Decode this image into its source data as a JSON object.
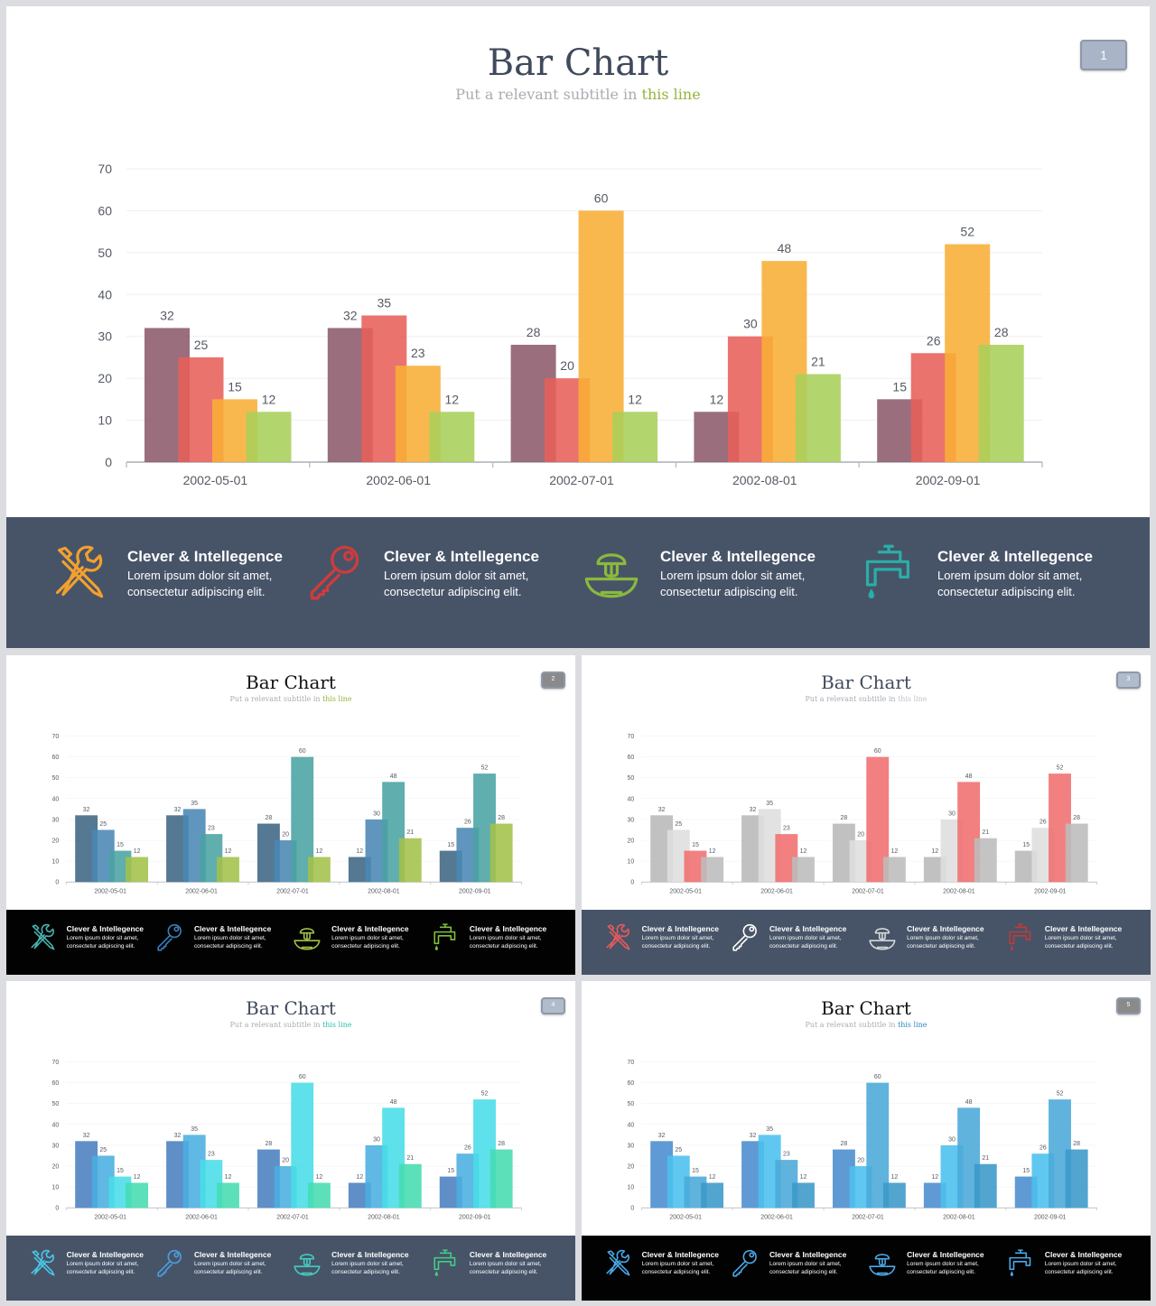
{
  "chart_data": {
    "type": "bar",
    "categories": [
      "2002-05-01",
      "2002-06-01",
      "2002-07-01",
      "2002-08-01",
      "2002-09-01"
    ],
    "series": [
      {
        "values": [
          32,
          32,
          28,
          12,
          15
        ]
      },
      {
        "values": [
          25,
          35,
          20,
          30,
          26
        ]
      },
      {
        "values": [
          15,
          23,
          60,
          48,
          52
        ]
      },
      {
        "values": [
          12,
          12,
          12,
          21,
          28
        ]
      }
    ],
    "title": "Bar Chart",
    "ylim": [
      0,
      70
    ],
    "yticks": [
      0,
      10,
      20,
      30,
      40,
      50,
      60,
      70
    ],
    "grid": true,
    "data_labels": true
  },
  "slide": {
    "title": "Bar Chart",
    "subtitle_text": "Put a relevant subtitle in ",
    "subtitle_highlight": "this line"
  },
  "features": [
    {
      "icon": "tools-icon",
      "title": "Clever & Intellegence",
      "line1": "Lorem ipsum dolor sit amet,",
      "line2": "consectetur adipiscing elit."
    },
    {
      "icon": "key-icon",
      "title": "Clever & Intellegence",
      "line1": "Lorem ipsum dolor sit amet,",
      "line2": "consectetur adipiscing elit."
    },
    {
      "icon": "juicer-icon",
      "title": "Clever & Intellegence",
      "line1": "Lorem ipsum dolor sit amet,",
      "line2": "consectetur adipiscing elit."
    },
    {
      "icon": "faucet-icon",
      "title": "Clever & Intellegence",
      "line1": "Lorem ipsum dolor sit amet,",
      "line2": "consectetur adipiscing elit."
    }
  ],
  "variants": [
    {
      "number": "1",
      "badge_color": "#a9b4c6",
      "footer_color": "#475468",
      "highlight_color": "#95b43c",
      "title_color": "#404a5c",
      "bar_colors": [
        "#8c5a6b",
        "#e8605a",
        "#f8ae36",
        "#a8cf5a"
      ],
      "icon_colors": [
        "#f2a02e",
        "#d43a3a",
        "#8ab93c",
        "#2aaea8"
      ]
    },
    {
      "number": "2",
      "badge_color": "#8a8a8a",
      "footer_color": "#020202",
      "highlight_color": "#95b43c",
      "title_color": "#111111",
      "bar_colors": [
        "#3e6584",
        "#4a87b4",
        "#4aa3a3",
        "#a3c24a"
      ],
      "icon_colors": [
        "#4ab0b0",
        "#3a7fbf",
        "#a3c24a",
        "#7fbf3a"
      ]
    },
    {
      "number": "3",
      "badge_color": "#b0bccb",
      "footer_color": "#475468",
      "highlight_color": "#c0c4c8",
      "title_color": "#404a5c",
      "bar_colors": [
        "#b8b8b8",
        "#dedede",
        "#f06e6e",
        "#bcbcbc"
      ],
      "icon_colors": [
        "#e85a5a",
        "#ffffff",
        "#d8d8d8",
        "#c03a3a"
      ]
    },
    {
      "number": "4",
      "badge_color": "#b0bccb",
      "footer_color": "#475468",
      "highlight_color": "#2bc0b0",
      "title_color": "#404a5c",
      "bar_colors": [
        "#4a7fc0",
        "#4aaee0",
        "#48dde8",
        "#44dcb0"
      ],
      "icon_colors": [
        "#48c8e8",
        "#4aa0e0",
        "#44ccc0",
        "#44cc88"
      ]
    },
    {
      "number": "5",
      "badge_color": "#8a8a8a",
      "footer_color": "#020202",
      "highlight_color": "#2a8ac0",
      "title_color": "#111111",
      "bar_colors": [
        "#4a8cce",
        "#4ac0ee",
        "#4aa8d8",
        "#3a98c8"
      ],
      "icon_colors": [
        "#4aa8e8",
        "#4aa8e8",
        "#4aa8e8",
        "#4aa8e8"
      ]
    }
  ]
}
